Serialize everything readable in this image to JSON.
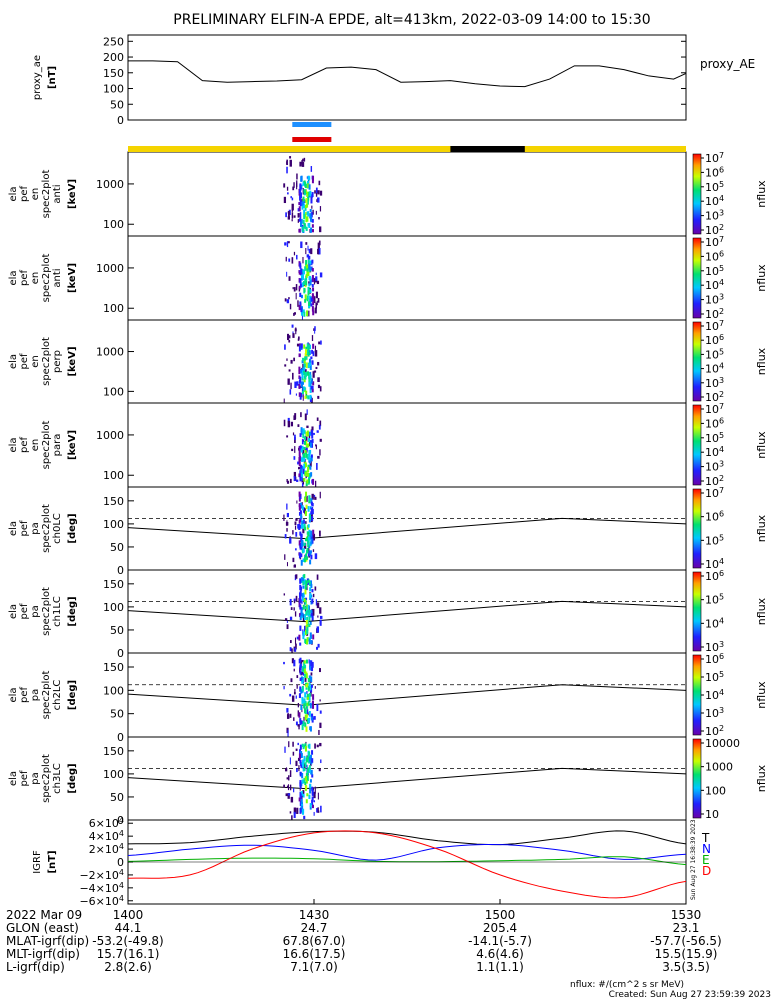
{
  "title": "PRELIMINARY ELFIN-A EPDE, alt=413km, 2022-03-09 14:00 to 15:30",
  "colors": {
    "sunlight_bar": "#f5d400",
    "eclipse_bar": "#000000",
    "spin_indicator_blue": "#1e90ff",
    "spin_indicator_red": "#e00000",
    "trace_T": "#000000",
    "trace_N": "#0000ff",
    "trace_E": "#00b000",
    "trace_D": "#ff0000"
  },
  "chart_data": [
    {
      "type": "line",
      "panel": "proxy_ae",
      "ylabel_lines": [
        "proxy_ae",
        "[nT]"
      ],
      "legend": "proxy_AE",
      "yticks": [
        "250",
        "200",
        "150",
        "100",
        "50",
        "0"
      ],
      "ylim": [
        0,
        270
      ],
      "x_minutes": [
        0,
        4,
        8,
        12,
        16,
        20,
        24,
        28,
        32,
        36,
        40,
        44,
        48,
        52,
        56,
        60,
        64,
        68,
        72,
        76,
        80,
        84,
        88,
        90
      ],
      "values": [
        188,
        188,
        185,
        125,
        120,
        122,
        124,
        128,
        165,
        168,
        160,
        120,
        122,
        125,
        115,
        108,
        106,
        130,
        172,
        172,
        160,
        140,
        130,
        148
      ]
    },
    {
      "type": "heatmap",
      "panel": "spec2plot_en_anti",
      "ylabel_lines": [
        "ela",
        "pef",
        "en",
        "spec2plot",
        "anti",
        "[keV]"
      ],
      "yticks": [
        "1000",
        "100"
      ],
      "colorbar_ticks": [
        "10^7",
        "10^6",
        "10^5",
        "10^4",
        "10^3",
        "10^2"
      ],
      "colorbar_label": "nflux",
      "burst_minutes": [
        25,
        31
      ],
      "peak_minutes": 28.6
    },
    {
      "type": "heatmap",
      "panel": "spec2plot_en_anti_2",
      "ylabel_lines": [
        "ela",
        "pef",
        "en",
        "spec2plot",
        "anti",
        "[keV]"
      ],
      "yticks": [
        "1000",
        "100"
      ],
      "colorbar_ticks": [
        "10^7",
        "10^6",
        "10^5",
        "10^4",
        "10^3",
        "10^2"
      ],
      "colorbar_label": "nflux",
      "burst_minutes": [
        25,
        31
      ],
      "peak_minutes": 28.6
    },
    {
      "type": "heatmap",
      "panel": "spec2plot_en_perp",
      "ylabel_lines": [
        "ela",
        "pef",
        "en",
        "spec2plot",
        "perp",
        "[keV]"
      ],
      "yticks": [
        "1000",
        "100"
      ],
      "colorbar_ticks": [
        "10^7",
        "10^6",
        "10^5",
        "10^4",
        "10^3",
        "10^2"
      ],
      "colorbar_label": "nflux",
      "burst_minutes": [
        25,
        31
      ],
      "peak_minutes": 28.6
    },
    {
      "type": "heatmap",
      "panel": "spec2plot_en_para",
      "ylabel_lines": [
        "ela",
        "pef",
        "en",
        "spec2plot",
        "para",
        "[keV]"
      ],
      "yticks": [
        "1000",
        "100"
      ],
      "colorbar_ticks": [
        "10^7",
        "10^6",
        "10^5",
        "10^4",
        "10^3",
        "10^2"
      ],
      "colorbar_label": "nflux",
      "burst_minutes": [
        25,
        31
      ],
      "peak_minutes": 28.6
    },
    {
      "type": "heatmap",
      "panel": "spec2plot_ch0LC",
      "ylabel_lines": [
        "ela",
        "pef",
        "pa",
        "spec2plot",
        "ch0LC",
        "[deg]"
      ],
      "yticks": [
        "150",
        "100",
        "50",
        "0"
      ],
      "colorbar_ticks": [
        "10^7",
        "10^6",
        "10^5",
        "10^4"
      ],
      "colorbar_label": "nflux",
      "burst_minutes": [
        25,
        31
      ],
      "peak_minutes": 28.6
    },
    {
      "type": "heatmap",
      "panel": "spec2plot_ch1LC",
      "ylabel_lines": [
        "ela",
        "pef",
        "pa",
        "spec2plot",
        "ch1LC",
        "[deg]"
      ],
      "yticks": [
        "150",
        "100",
        "50",
        "0"
      ],
      "colorbar_ticks": [
        "10^6",
        "10^5",
        "10^4",
        "10^3"
      ],
      "colorbar_label": "nflux",
      "burst_minutes": [
        25,
        31
      ],
      "peak_minutes": 28.6
    },
    {
      "type": "heatmap",
      "panel": "spec2plot_ch2LC",
      "ylabel_lines": [
        "ela",
        "pef",
        "pa",
        "spec2plot",
        "ch2LC",
        "[deg]"
      ],
      "yticks": [
        "150",
        "100",
        "50",
        "0"
      ],
      "colorbar_ticks": [
        "10^6",
        "10^5",
        "10^4",
        "10^3",
        "10^2"
      ],
      "colorbar_label": "nflux",
      "burst_minutes": [
        25,
        31
      ],
      "peak_minutes": 28.6
    },
    {
      "type": "heatmap",
      "panel": "spec2plot_ch3LC",
      "ylabel_lines": [
        "ela",
        "pef",
        "pa",
        "spec2plot",
        "ch3LC",
        "[deg]"
      ],
      "yticks": [
        "150",
        "100",
        "50",
        "0"
      ],
      "colorbar_ticks": [
        "10000",
        "1000",
        "100",
        "10"
      ],
      "colorbar_label": "nflux",
      "burst_minutes": [
        25,
        31
      ],
      "peak_minutes": 28.6
    },
    {
      "type": "line",
      "panel": "igrf",
      "ylabel_lines": [
        "IGRF",
        "[nT]"
      ],
      "yticks": [
        "6×10^4",
        "4×10^4",
        "2×10^4",
        "0",
        "−2×10^4",
        "−4×10^4",
        "−6×10^4"
      ],
      "ylim": [
        -65000,
        65000
      ],
      "legend": [
        "T",
        "N",
        "E",
        "D"
      ],
      "x_minutes": [
        0,
        10,
        20,
        30,
        40,
        50,
        60,
        70,
        80,
        90
      ],
      "series": [
        {
          "name": "T",
          "values": [
            28000,
            30000,
            40000,
            47000,
            46000,
            33000,
            27000,
            37000,
            48000,
            28000
          ]
        },
        {
          "name": "N",
          "values": [
            10000,
            20000,
            26000,
            18000,
            3000,
            22000,
            27000,
            18000,
            4000,
            12000
          ]
        },
        {
          "name": "E",
          "values": [
            1000,
            4000,
            6000,
            5000,
            1000,
            500,
            2000,
            4000,
            8000,
            -4000
          ]
        },
        {
          "name": "D",
          "values": [
            -25000,
            -20000,
            20000,
            45000,
            45000,
            20000,
            -20000,
            -45000,
            -55000,
            -30000
          ]
        }
      ]
    }
  ],
  "xticks": [
    "1400",
    "1430",
    "1500",
    "1530"
  ],
  "ephemeris": [
    {
      "label": "2022 Mar 09",
      "values": [
        "1400",
        "1430",
        "1500",
        "1530"
      ]
    },
    {
      "label": "GLON (east)",
      "values": [
        "44.1",
        "24.7",
        "205.4",
        "23.1"
      ]
    },
    {
      "label": "MLAT-igrf(dip)",
      "values": [
        "-53.2(-49.8)",
        "67.8(67.0)",
        "-14.1(-5.7)",
        "-57.7(-56.5)"
      ]
    },
    {
      "label": "MLT-igrf(dip)",
      "values": [
        "15.7(16.1)",
        "16.6(17.5)",
        "4.6(4.6)",
        "15.5(15.9)"
      ]
    },
    {
      "label": "L-igrf(dip)",
      "values": [
        "2.8(2.6)",
        "7.1(7.0)",
        "1.1(1.1)",
        "3.5(3.5)"
      ]
    }
  ],
  "footer": {
    "units": "nflux: #/(cm^2 s sr MeV)",
    "created": "Created: Sun Aug 27 23:59:39 2023",
    "side_stamp": "Sun Aug 27 16:38:39 2023"
  }
}
